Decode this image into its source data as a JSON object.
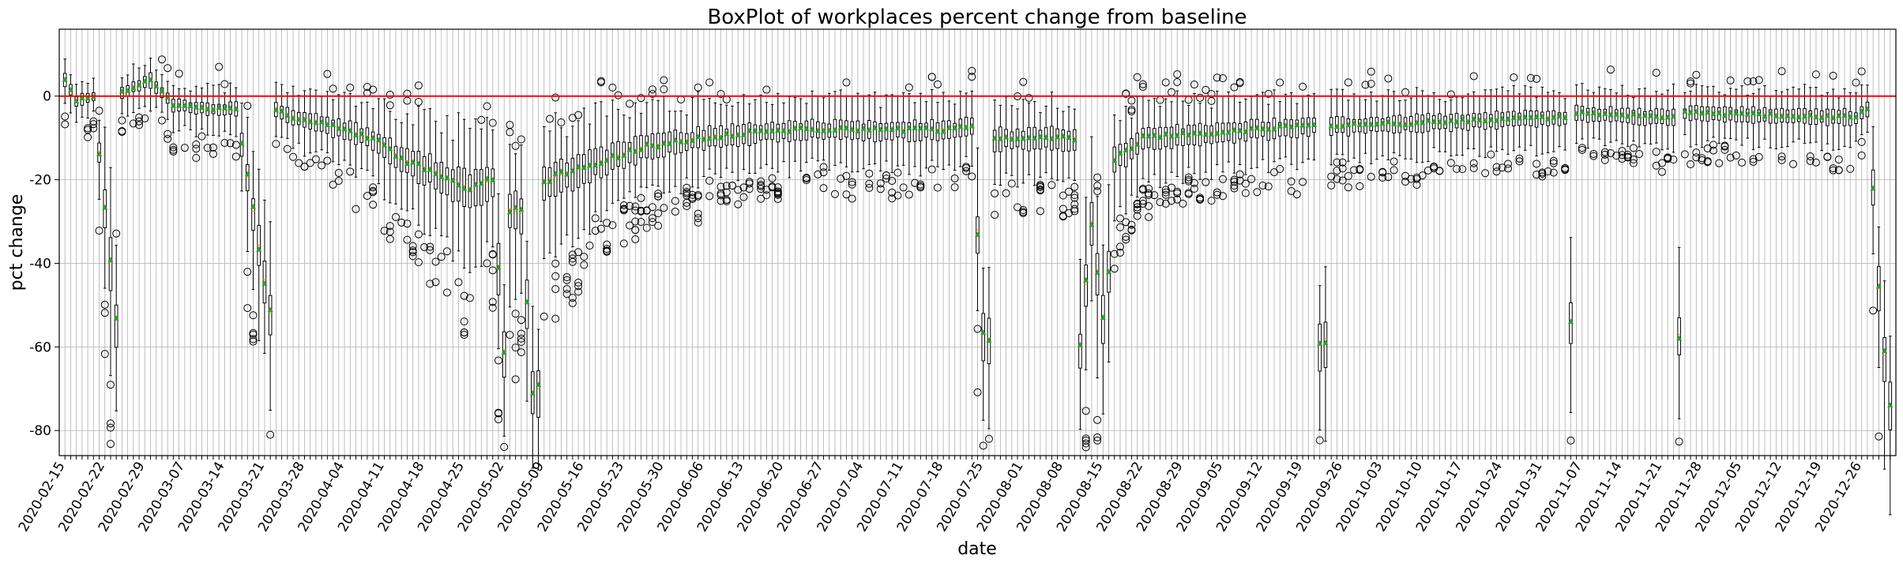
{
  "chart_data": {
    "type": "box",
    "title": "BoxPlot of workplaces percent change from baseline",
    "xlabel": "date",
    "ylabel": "pct change",
    "ylim": [
      -86,
      16
    ],
    "yticks": [
      0,
      -20,
      -40,
      -60,
      -80
    ],
    "reference_line": {
      "y": 0,
      "color": "#ff0000"
    },
    "grid": true,
    "x_start_date": "2020-02-15",
    "x_end_date": "2020-12-31",
    "xtick_labels": [
      "2020-02-15",
      "2020-02-22",
      "2020-02-29",
      "2020-03-07",
      "2020-03-14",
      "2020-03-21",
      "2020-03-28",
      "2020-04-04",
      "2020-04-11",
      "2020-04-18",
      "2020-04-25",
      "2020-05-02",
      "2020-05-09",
      "2020-05-16",
      "2020-05-23",
      "2020-05-30",
      "2020-06-06",
      "2020-06-13",
      "2020-06-20",
      "2020-06-27",
      "2020-07-04",
      "2020-07-11",
      "2020-07-18",
      "2020-07-25",
      "2020-08-01",
      "2020-08-08",
      "2020-08-15",
      "2020-08-22",
      "2020-08-29",
      "2020-09-05",
      "2020-09-12",
      "2020-09-19",
      "2020-09-26",
      "2020-10-03",
      "2020-10-10",
      "2020-10-17",
      "2020-10-24",
      "2020-10-31",
      "2020-11-07",
      "2020-11-14",
      "2020-11-21",
      "2020-11-28",
      "2020-12-05",
      "2020-12-12",
      "2020-12-19",
      "2020-12-26"
    ],
    "median_profile": [
      [
        "2020-02-15",
        4
      ],
      [
        "2020-02-17",
        -1
      ],
      [
        "2020-02-20",
        0
      ],
      [
        "2020-02-24",
        -53
      ],
      [
        "2020-02-25",
        1
      ],
      [
        "2020-03-01",
        4
      ],
      [
        "2020-03-05",
        -2
      ],
      [
        "2020-03-12",
        -3
      ],
      [
        "2020-03-16",
        -3
      ],
      [
        "2020-03-22",
        -52
      ],
      [
        "2020-03-23",
        -3
      ],
      [
        "2020-03-26",
        -5
      ],
      [
        "2020-03-30",
        -6
      ],
      [
        "2020-04-04",
        -8
      ],
      [
        "2020-04-09",
        -10
      ],
      [
        "2020-04-14",
        -15
      ],
      [
        "2020-04-20",
        -18
      ],
      [
        "2020-04-26",
        -22
      ],
      [
        "2020-04-30",
        -20
      ],
      [
        "2020-05-02",
        -61
      ],
      [
        "2020-05-03",
        -27
      ],
      [
        "2020-05-05",
        -28
      ],
      [
        "2020-05-07",
        -71
      ],
      [
        "2020-05-08",
        -70
      ],
      [
        "2020-05-09",
        -20
      ],
      [
        "2020-05-14",
        -18
      ],
      [
        "2020-05-20",
        -15
      ],
      [
        "2020-05-27",
        -12
      ],
      [
        "2020-06-05",
        -10
      ],
      [
        "2020-06-12",
        -9
      ],
      [
        "2020-06-20",
        -8
      ],
      [
        "2020-07-01",
        -8
      ],
      [
        "2020-07-20",
        -8
      ],
      [
        "2020-07-23",
        -7
      ],
      [
        "2020-07-25",
        -57
      ],
      [
        "2020-07-26",
        -58
      ],
      [
        "2020-07-27",
        -10
      ],
      [
        "2020-08-10",
        -10
      ],
      [
        "2020-08-11",
        -60
      ],
      [
        "2020-08-13",
        -30
      ],
      [
        "2020-08-15",
        -53
      ],
      [
        "2020-08-16",
        -42
      ],
      [
        "2020-08-17",
        -15
      ],
      [
        "2020-08-22",
        -10
      ],
      [
        "2020-09-10",
        -8
      ],
      [
        "2020-09-21",
        -7
      ],
      [
        "2020-09-22",
        -59
      ],
      [
        "2020-09-23",
        -58
      ],
      [
        "2020-09-24",
        -7
      ],
      [
        "2020-10-15",
        -6
      ],
      [
        "2020-11-04",
        -5
      ],
      [
        "2020-11-05",
        -54
      ],
      [
        "2020-11-06",
        -4
      ],
      [
        "2020-11-23",
        -5
      ],
      [
        "2020-11-24",
        -57
      ],
      [
        "2020-11-25",
        -4
      ],
      [
        "2020-12-25",
        -5
      ],
      [
        "2020-12-27",
        -3
      ],
      [
        "2020-12-28",
        -22
      ],
      [
        "2020-12-29",
        -46
      ],
      [
        "2020-12-30",
        -62
      ],
      [
        "2020-12-31",
        -74
      ]
    ]
  }
}
